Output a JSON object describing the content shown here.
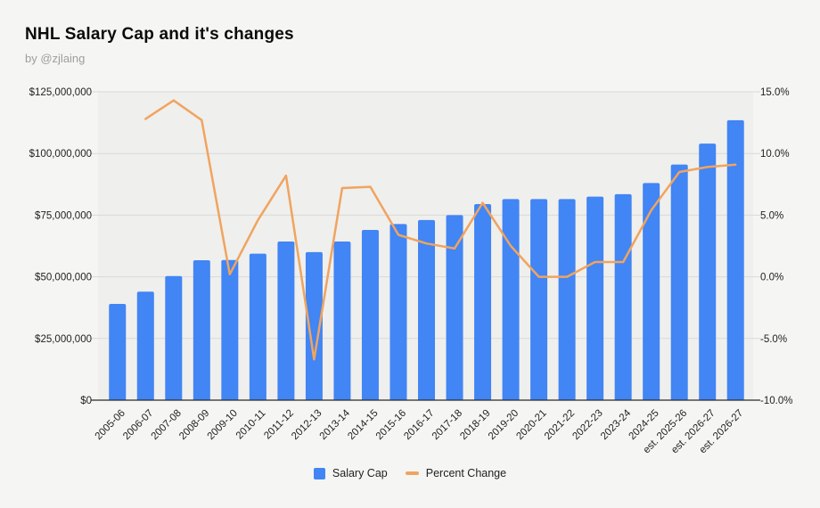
{
  "header": {
    "title": "NHL Salary Cap and it's changes",
    "byline": "by @zjlaing"
  },
  "legend": {
    "items": [
      {
        "label": "Salary Cap",
        "marker": "square",
        "color": "#4285f4"
      },
      {
        "label": "Percent Change",
        "marker": "line",
        "color": "#f0a45f"
      }
    ]
  },
  "colors": {
    "bar": "#4285f4",
    "line": "#f0a45f",
    "gridline": "#d9d9d9",
    "baseline": "#2a2a2a",
    "page_background": "#f5f5f3",
    "plot_background": "#efefed"
  },
  "chart_data": {
    "type": "bar",
    "subtype": "combo-bar-line",
    "title": "NHL Salary Cap and it's changes",
    "categories": [
      "2005-06",
      "2006-07",
      "2007-08",
      "2008-09",
      "2009-10",
      "2010-11",
      "2011-12",
      "2012-13",
      "2013-14",
      "2014-15",
      "2015-16",
      "2016-17",
      "2017-18",
      "2018-19",
      "2019-20",
      "2020-21",
      "2021-22",
      "2022-23",
      "2023-24",
      "2024-25",
      "est. 2025-26",
      "est. 2026-27",
      "est. 2026-27"
    ],
    "series": [
      {
        "name": "Salary Cap",
        "type": "bar",
        "axis": "left",
        "color": "#4285f4",
        "values": [
          39000000,
          44000000,
          50300000,
          56700000,
          56800000,
          59400000,
          64300000,
          60000000,
          64300000,
          69000000,
          71400000,
          73000000,
          75000000,
          79500000,
          81500000,
          81500000,
          81500000,
          82500000,
          83500000,
          88000000,
          95500000,
          104000000,
          113500000
        ]
      },
      {
        "name": "Percent Change",
        "type": "line",
        "axis": "right",
        "color": "#f0a45f",
        "values": [
          null,
          12.8,
          14.3,
          12.7,
          0.2,
          4.6,
          8.2,
          -6.7,
          7.2,
          7.3,
          3.4,
          2.7,
          2.3,
          6.0,
          2.5,
          0.0,
          0.0,
          1.2,
          1.2,
          5.4,
          8.5,
          8.9,
          9.1
        ]
      }
    ],
    "left_axis": {
      "min": 0,
      "max": 125000000,
      "ticks": [
        "$0",
        "$25,000,000",
        "$50,000,000",
        "$75,000,000",
        "$100,000,000",
        "$125,000,000"
      ]
    },
    "right_axis": {
      "min": -10,
      "max": 15,
      "ticks": [
        "-10.0%",
        "-5.0%",
        "0.0%",
        "5.0%",
        "10.0%",
        "15.0%"
      ]
    },
    "grid": true,
    "legend_position": "bottom",
    "x_label_rotation": -45
  }
}
